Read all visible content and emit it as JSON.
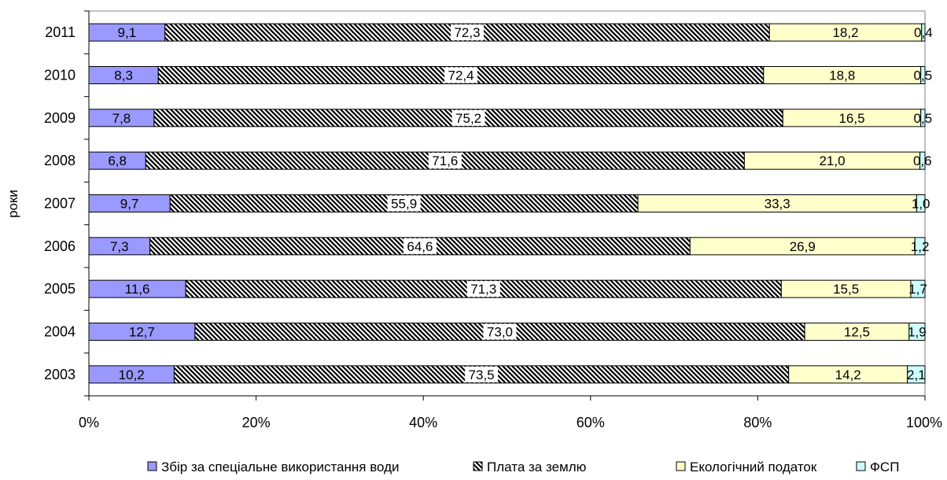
{
  "chart_data": {
    "type": "bar",
    "orientation": "horizontal",
    "stacked": "percent",
    "ylabel": "роки",
    "xlabel": "",
    "categories": [
      "2011",
      "2010",
      "2009",
      "2008",
      "2007",
      "2006",
      "2005",
      "2004",
      "2003"
    ],
    "x_ticks": [
      "0%",
      "20%",
      "40%",
      "60%",
      "80%",
      "100%"
    ],
    "xlim": [
      0,
      100
    ],
    "grid": false,
    "legend_position": "bottom",
    "series": [
      {
        "name": "Збір за спеціальне використання води",
        "color": "#9999ff",
        "pattern": "solid",
        "values": [
          9.1,
          8.3,
          7.8,
          6.8,
          9.7,
          7.3,
          11.6,
          12.7,
          10.2
        ],
        "labels": [
          "9,1",
          "8,3",
          "7,8",
          "6,8",
          "9,7",
          "7,3",
          "11,6",
          "12,7",
          "10,2"
        ]
      },
      {
        "name": "Плата за землю",
        "color": "#000000",
        "pattern": "diagonal-hatch",
        "values": [
          72.3,
          72.4,
          75.2,
          71.6,
          55.9,
          64.6,
          71.3,
          73.0,
          73.5
        ],
        "labels": [
          "72,3",
          "72,4",
          "75,2",
          "71,6",
          "55,9",
          "64,6",
          "71,3",
          "73,0",
          "73,5"
        ]
      },
      {
        "name": "Екологічний податок",
        "color": "#ffffcc",
        "pattern": "solid",
        "values": [
          18.2,
          18.8,
          16.5,
          21.0,
          33.3,
          26.9,
          15.5,
          12.5,
          14.2
        ],
        "labels": [
          "18,2",
          "18,8",
          "16,5",
          "21,0",
          "33,3",
          "26,9",
          "15,5",
          "12,5",
          "14,2"
        ]
      },
      {
        "name": "ФСП",
        "color": "#ccffff",
        "pattern": "solid",
        "values": [
          0.4,
          0.5,
          0.5,
          0.6,
          1.0,
          1.2,
          1.7,
          1.9,
          2.1
        ],
        "labels": [
          "0,4",
          "0,5",
          "0,5",
          "0,6",
          "1,0",
          "1,2",
          "1,7",
          "1,9",
          "2,1"
        ]
      }
    ]
  }
}
